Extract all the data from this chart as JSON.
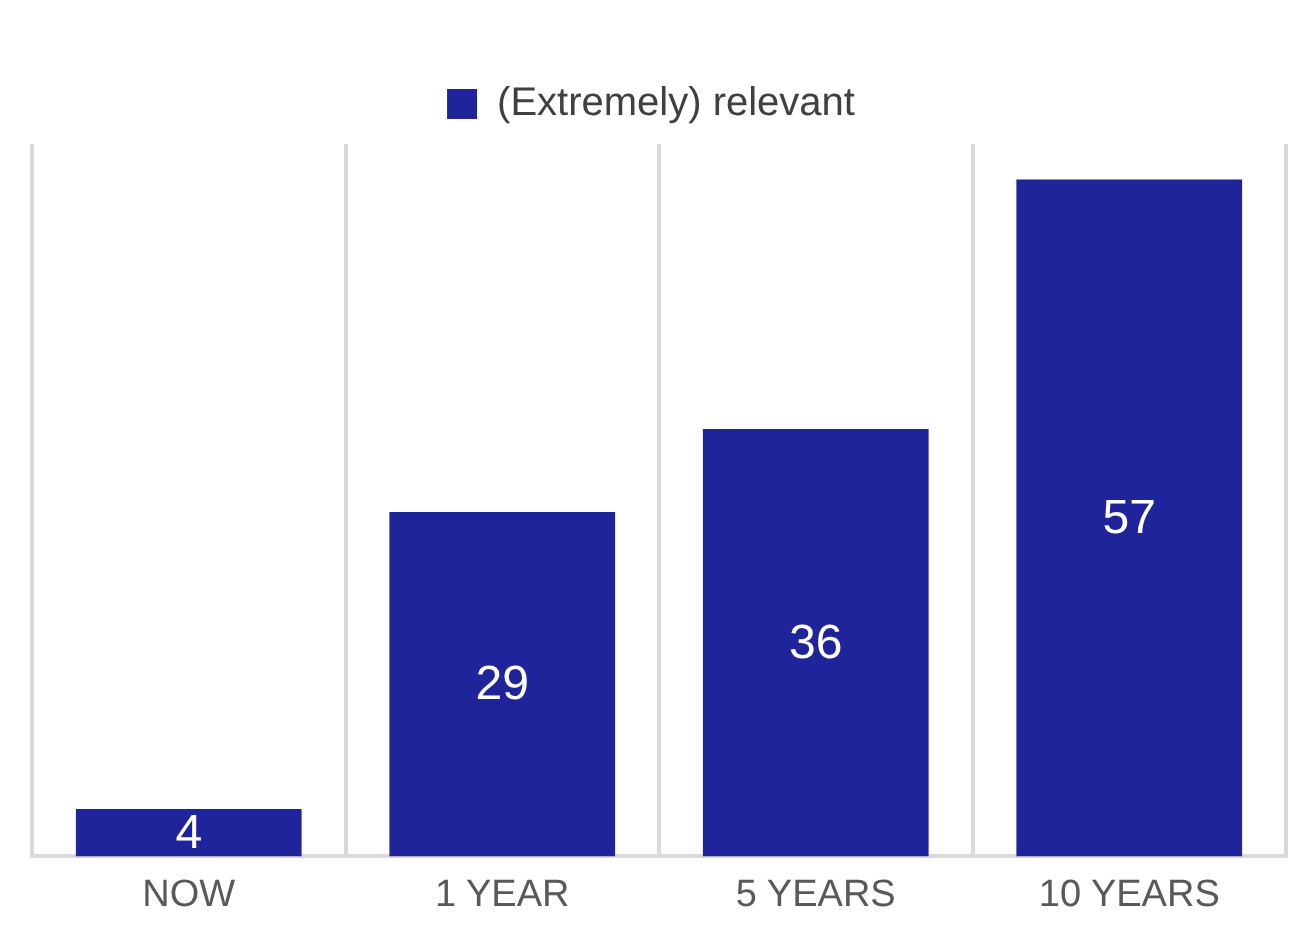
{
  "chart_data": {
    "type": "bar",
    "categories": [
      "NOW",
      "1 YEAR",
      "5 YEARS",
      "10 YEARS"
    ],
    "series": [
      {
        "name": "(Extremely) relevant",
        "color": "#1f249b",
        "values": [
          4,
          29,
          36,
          57
        ]
      }
    ],
    "data_labels": true,
    "grid": "x",
    "legend": "top"
  }
}
